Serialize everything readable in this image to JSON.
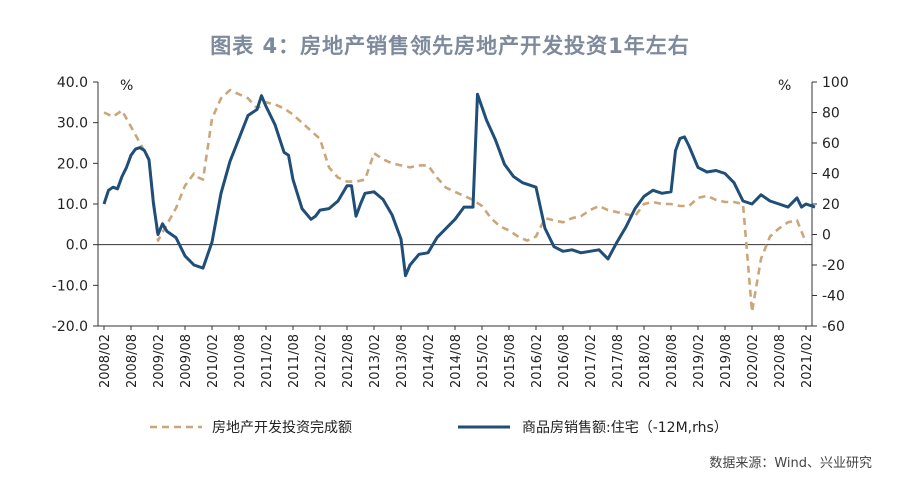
{
  "title": "图表 4：房地产销售领先房地产开发投资1年左右",
  "source": "数据来源：Wind、兴业研究",
  "chart_data": {
    "type": "line",
    "left_axis": {
      "unit_label": "%",
      "ylim": [
        -20,
        40
      ],
      "ticks": [
        "40.0",
        "30.0",
        "20.0",
        "10.0",
        "0.0",
        "-10.0",
        "-20.0"
      ]
    },
    "right_axis": {
      "unit_label": "%",
      "ylim": [
        -60,
        100
      ],
      "ticks": [
        "100",
        "80",
        "60",
        "40",
        "20",
        "0",
        "-20",
        "-40",
        "-60"
      ]
    },
    "x_tick_labels": [
      "2008/02",
      "2008/08",
      "2009/02",
      "2009/08",
      "2010/02",
      "2010/08",
      "2011/02",
      "2011/08",
      "2012/02",
      "2012/08",
      "2013/02",
      "2013/08",
      "2014/02",
      "2014/08",
      "2015/02",
      "2015/08",
      "2016/02",
      "2016/08",
      "2017/02",
      "2017/08",
      "2018/02",
      "2018/08",
      "2019/02",
      "2019/08",
      "2020/02",
      "2020/08",
      "2021/02"
    ],
    "series": [
      {
        "name": "房地产开发投资完成额",
        "axis": "left",
        "style": "dashed",
        "color": "#c9a77a",
        "points": [
          [
            "2008/02",
            32.5
          ],
          [
            "2008/04",
            31.5
          ],
          [
            "2008/06",
            33.0
          ],
          [
            "2008/08",
            29.0
          ],
          [
            "2008/10",
            25.0
          ],
          [
            "2008/12",
            21.0
          ],
          [
            "2009/02",
            1.0
          ],
          [
            "2009/04",
            5.0
          ],
          [
            "2009/06",
            9.0
          ],
          [
            "2009/08",
            14.5
          ],
          [
            "2009/10",
            17.5
          ],
          [
            "2009/11",
            16.5
          ],
          [
            "2009/12",
            16.0
          ],
          [
            "2010/02",
            31.0
          ],
          [
            "2010/04",
            36.0
          ],
          [
            "2010/06",
            38.0
          ],
          [
            "2010/08",
            37.0
          ],
          [
            "2010/10",
            36.0
          ],
          [
            "2010/12",
            33.5
          ],
          [
            "2011/02",
            35.0
          ],
          [
            "2011/04",
            34.5
          ],
          [
            "2011/06",
            33.5
          ],
          [
            "2011/08",
            32.0
          ],
          [
            "2011/10",
            30.0
          ],
          [
            "2011/12",
            28.0
          ],
          [
            "2012/02",
            26.0
          ],
          [
            "2012/04",
            19.0
          ],
          [
            "2012/06",
            16.5
          ],
          [
            "2012/08",
            15.5
          ],
          [
            "2012/10",
            15.5
          ],
          [
            "2012/12",
            16.0
          ],
          [
            "2013/02",
            22.5
          ],
          [
            "2013/04",
            21.0
          ],
          [
            "2013/06",
            20.0
          ],
          [
            "2013/08",
            19.5
          ],
          [
            "2013/10",
            19.0
          ],
          [
            "2013/12",
            19.5
          ],
          [
            "2014/02",
            19.5
          ],
          [
            "2014/04",
            16.5
          ],
          [
            "2014/06",
            14.0
          ],
          [
            "2014/08",
            13.0
          ],
          [
            "2014/10",
            12.0
          ],
          [
            "2014/12",
            11.0
          ],
          [
            "2015/02",
            9.5
          ],
          [
            "2015/04",
            6.5
          ],
          [
            "2015/06",
            4.5
          ],
          [
            "2015/08",
            3.5
          ],
          [
            "2015/10",
            2.0
          ],
          [
            "2015/12",
            1.0
          ],
          [
            "2016/02",
            2.0
          ],
          [
            "2016/04",
            6.5
          ],
          [
            "2016/06",
            6.0
          ],
          [
            "2016/08",
            5.5
          ],
          [
            "2016/10",
            6.5
          ],
          [
            "2016/12",
            7.0
          ],
          [
            "2017/02",
            8.5
          ],
          [
            "2017/04",
            9.5
          ],
          [
            "2017/06",
            8.5
          ],
          [
            "2017/08",
            8.0
          ],
          [
            "2017/10",
            7.5
          ],
          [
            "2017/12",
            7.0
          ],
          [
            "2018/02",
            10.0
          ],
          [
            "2018/04",
            10.5
          ],
          [
            "2018/06",
            10.0
          ],
          [
            "2018/08",
            10.0
          ],
          [
            "2018/10",
            9.5
          ],
          [
            "2018/12",
            9.5
          ],
          [
            "2019/02",
            11.5
          ],
          [
            "2019/04",
            12.0
          ],
          [
            "2019/06",
            11.0
          ],
          [
            "2019/08",
            10.5
          ],
          [
            "2019/10",
            10.5
          ],
          [
            "2019/12",
            10.0
          ],
          [
            "2020/02",
            -16.5
          ],
          [
            "2020/04",
            -3.5
          ],
          [
            "2020/06",
            2.0
          ],
          [
            "2020/08",
            4.0
          ],
          [
            "2020/10",
            5.5
          ],
          [
            "2020/12",
            6.0
          ],
          [
            "2021/02",
            0.5
          ]
        ]
      },
      {
        "name": "商品房销售额:住宅（-12M,rhs）",
        "axis": "right",
        "style": "solid",
        "color": "#1f4e79",
        "points": [
          [
            "2008/02",
            20
          ],
          [
            "2008/03",
            29
          ],
          [
            "2008/04",
            31
          ],
          [
            "2008/05",
            30
          ],
          [
            "2008/06",
            38
          ],
          [
            "2008/07",
            44
          ],
          [
            "2008/08",
            52
          ],
          [
            "2008/09",
            56
          ],
          [
            "2008/10",
            57
          ],
          [
            "2008/11",
            55
          ],
          [
            "2008/12",
            49
          ],
          [
            "2009/01",
            20
          ],
          [
            "2009/02",
            0
          ],
          [
            "2009/03",
            7
          ],
          [
            "2009/04",
            2
          ],
          [
            "2009/05",
            0
          ],
          [
            "2009/06",
            -2
          ],
          [
            "2009/08",
            -14
          ],
          [
            "2009/10",
            -20
          ],
          [
            "2009/12",
            -22
          ],
          [
            "2010/02",
            -5
          ],
          [
            "2010/04",
            27
          ],
          [
            "2010/06",
            48
          ],
          [
            "2010/08",
            63
          ],
          [
            "2010/10",
            78
          ],
          [
            "2010/12",
            82
          ],
          [
            "2011/01",
            91
          ],
          [
            "2011/02",
            84
          ],
          [
            "2011/04",
            72
          ],
          [
            "2011/06",
            54
          ],
          [
            "2011/07",
            52
          ],
          [
            "2011/08",
            36
          ],
          [
            "2011/10",
            17
          ],
          [
            "2011/12",
            10
          ],
          [
            "2012/01",
            12
          ],
          [
            "2012/02",
            16
          ],
          [
            "2012/04",
            17
          ],
          [
            "2012/06",
            22
          ],
          [
            "2012/08",
            32
          ],
          [
            "2012/09",
            32
          ],
          [
            "2012/10",
            12
          ],
          [
            "2012/11",
            20
          ],
          [
            "2012/12",
            27
          ],
          [
            "2013/02",
            28
          ],
          [
            "2013/04",
            23
          ],
          [
            "2013/06",
            13
          ],
          [
            "2013/08",
            -3
          ],
          [
            "2013/09",
            -27
          ],
          [
            "2013/10",
            -20
          ],
          [
            "2013/12",
            -13
          ],
          [
            "2014/02",
            -12
          ],
          [
            "2014/04",
            -2
          ],
          [
            "2014/06",
            4
          ],
          [
            "2014/08",
            10
          ],
          [
            "2014/10",
            18
          ],
          [
            "2014/12",
            18
          ],
          [
            "2015/01",
            92
          ],
          [
            "2015/03",
            75
          ],
          [
            "2015/05",
            62
          ],
          [
            "2015/07",
            46
          ],
          [
            "2015/09",
            38
          ],
          [
            "2015/11",
            34
          ],
          [
            "2016/02",
            31
          ],
          [
            "2016/04",
            4
          ],
          [
            "2016/06",
            -8
          ],
          [
            "2016/08",
            -11
          ],
          [
            "2016/10",
            -10
          ],
          [
            "2016/12",
            -12
          ],
          [
            "2017/02",
            -11
          ],
          [
            "2017/04",
            -10
          ],
          [
            "2017/06",
            -16
          ],
          [
            "2017/08",
            -5
          ],
          [
            "2017/10",
            5
          ],
          [
            "2017/12",
            17
          ],
          [
            "2018/02",
            25
          ],
          [
            "2018/04",
            29
          ],
          [
            "2018/06",
            27
          ],
          [
            "2018/08",
            28
          ],
          [
            "2018/09",
            55
          ],
          [
            "2018/10",
            63
          ],
          [
            "2018/11",
            64
          ],
          [
            "2018/12",
            58
          ],
          [
            "2019/02",
            44
          ],
          [
            "2019/04",
            41
          ],
          [
            "2019/06",
            42
          ],
          [
            "2019/08",
            40
          ],
          [
            "2019/10",
            34
          ],
          [
            "2019/12",
            22
          ],
          [
            "2020/02",
            20
          ],
          [
            "2020/04",
            26
          ],
          [
            "2020/06",
            22
          ],
          [
            "2020/08",
            20
          ],
          [
            "2020/10",
            18
          ],
          [
            "2020/12",
            24
          ],
          [
            "2021/01",
            18
          ],
          [
            "2021/02",
            20
          ],
          [
            "2021/04",
            18
          ]
        ]
      }
    ],
    "legend_position": "bottom"
  }
}
